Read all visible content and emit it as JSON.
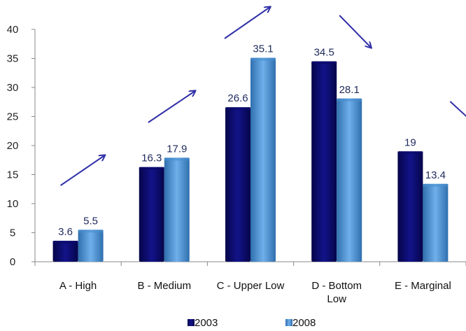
{
  "chart_data": {
    "type": "bar",
    "categories": [
      "A - High",
      "B - Medium",
      "C - Upper Low",
      "D - Bottom Low",
      "E - Marginal"
    ],
    "category_lines": [
      [
        "A - High"
      ],
      [
        "B - Medium"
      ],
      [
        "C - Upper Low"
      ],
      [
        "D - Bottom",
        "Low"
      ],
      [
        "E - Marginal"
      ]
    ],
    "series": [
      {
        "name": "2003",
        "values": [
          3.6,
          16.3,
          26.6,
          34.5,
          19
        ],
        "labels": [
          "3.6",
          "16.3",
          "26.6",
          "34.5",
          "19"
        ],
        "color": "#0a0a6b"
      },
      {
        "name": "2008",
        "values": [
          5.5,
          17.9,
          35.1,
          28.1,
          13.4
        ],
        "labels": [
          "5.5",
          "17.9",
          "35.1",
          "28.1",
          "13.4"
        ],
        "color": "#4a90d0"
      }
    ],
    "ylim": [
      0,
      40
    ],
    "yticks": [
      "0",
      "5",
      "10",
      "15",
      "20",
      "25",
      "30",
      "35",
      "40"
    ],
    "legend_position": "bottom",
    "annotations": [
      {
        "kind": "arrow",
        "direction": "up"
      },
      {
        "kind": "arrow",
        "direction": "up"
      },
      {
        "kind": "arrow",
        "direction": "up"
      },
      {
        "kind": "arrow",
        "direction": "down"
      },
      {
        "kind": "arrow",
        "direction": "down"
      }
    ],
    "arrow_color": "#3030a8",
    "grid": false
  }
}
